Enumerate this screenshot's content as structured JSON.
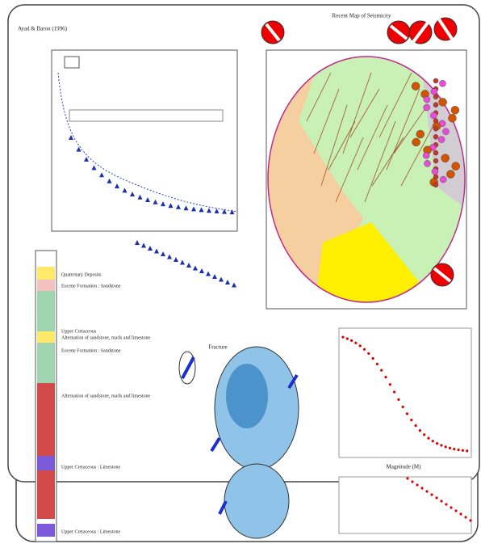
{
  "header": {
    "left_title": "Ayad & Baron (1996)",
    "map_title": "Recent Map of Seismicity"
  },
  "column": {
    "units": [
      "Quaternary Deposits",
      "Eocene Formation : Sandstone",
      "Upper Cretaceous",
      "Alternation of sandstone, marls and limestone",
      "Eocene Formation : Sandstone",
      "Alternation of sandstone, marls and limestone",
      "Upper Cretaceous : Limestone",
      "Upper Cretaceous : Limestone"
    ]
  },
  "stereonet": {
    "title": "Fracture"
  },
  "plots": {
    "x_label": "Magnitude (M)"
  }
}
